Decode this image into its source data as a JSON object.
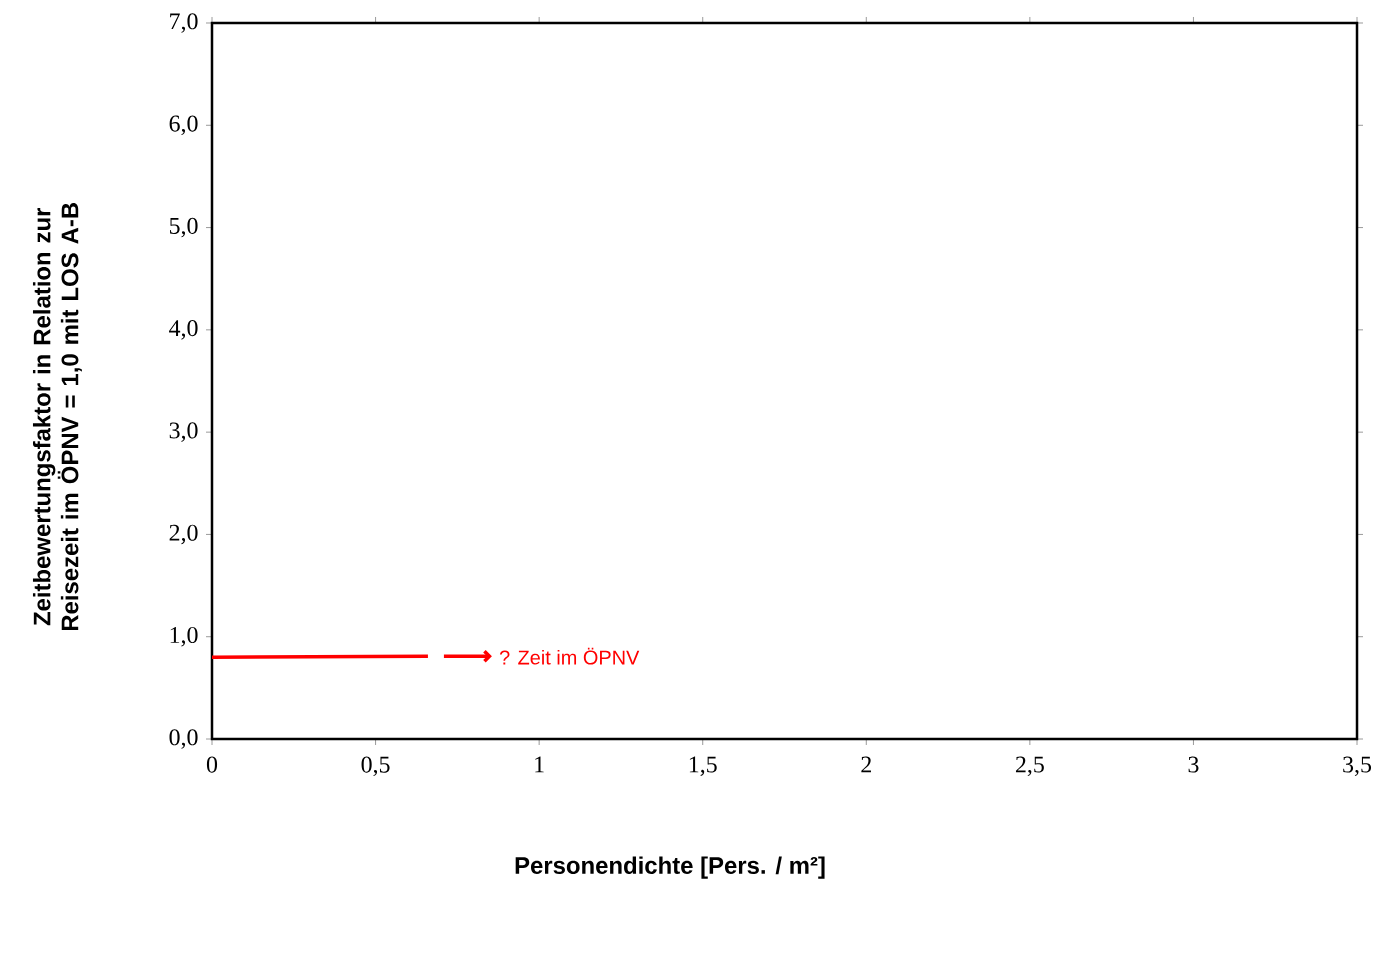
{
  "chart_data": {
    "type": "line",
    "xlabel": "Personendichte [Pers. / m²]",
    "ylabel": "Zeitbewertungsfaktor in Relation zur Reisezeit im ÖPNV = 1,0 mit LOS A-B",
    "series": [
      {
        "color": "#ff0000",
        "x": [
          0,
          0.66
        ],
        "values": [
          0.8,
          0.81
        ]
      }
    ],
    "annotations": [
      "? Zeit im ÖPNV"
    ],
    "xlim": [
      0,
      3.5
    ],
    "xticks": [
      0,
      {
        "value": 0.5,
        "label": "0,5"
      },
      1,
      {
        "value": 1.5,
        "label": "1,5"
      },
      2,
      {
        "value": 2.5,
        "label": "2,5"
      },
      3,
      {
        "value": 3.5,
        "label": "3,5"
      }
    ],
    "ylim": [
      0,
      7
    ],
    "yticks": [
      {
        "value": 0,
        "label": "0,0"
      },
      {
        "value": 1,
        "label": "1,0"
      },
      {
        "value": 2,
        "label": "2,0"
      },
      {
        "value": 3,
        "label": "3,0"
      },
      {
        "value": 4,
        "label": "4,0"
      },
      {
        "value": 5,
        "label": "5,0"
      },
      {
        "value": 6,
        "label": "6,0"
      },
      {
        "value": 7,
        "label": "7,0"
      }
    ],
    "grid": false,
    "marker": "none",
    "line_style": "solid"
  }
}
